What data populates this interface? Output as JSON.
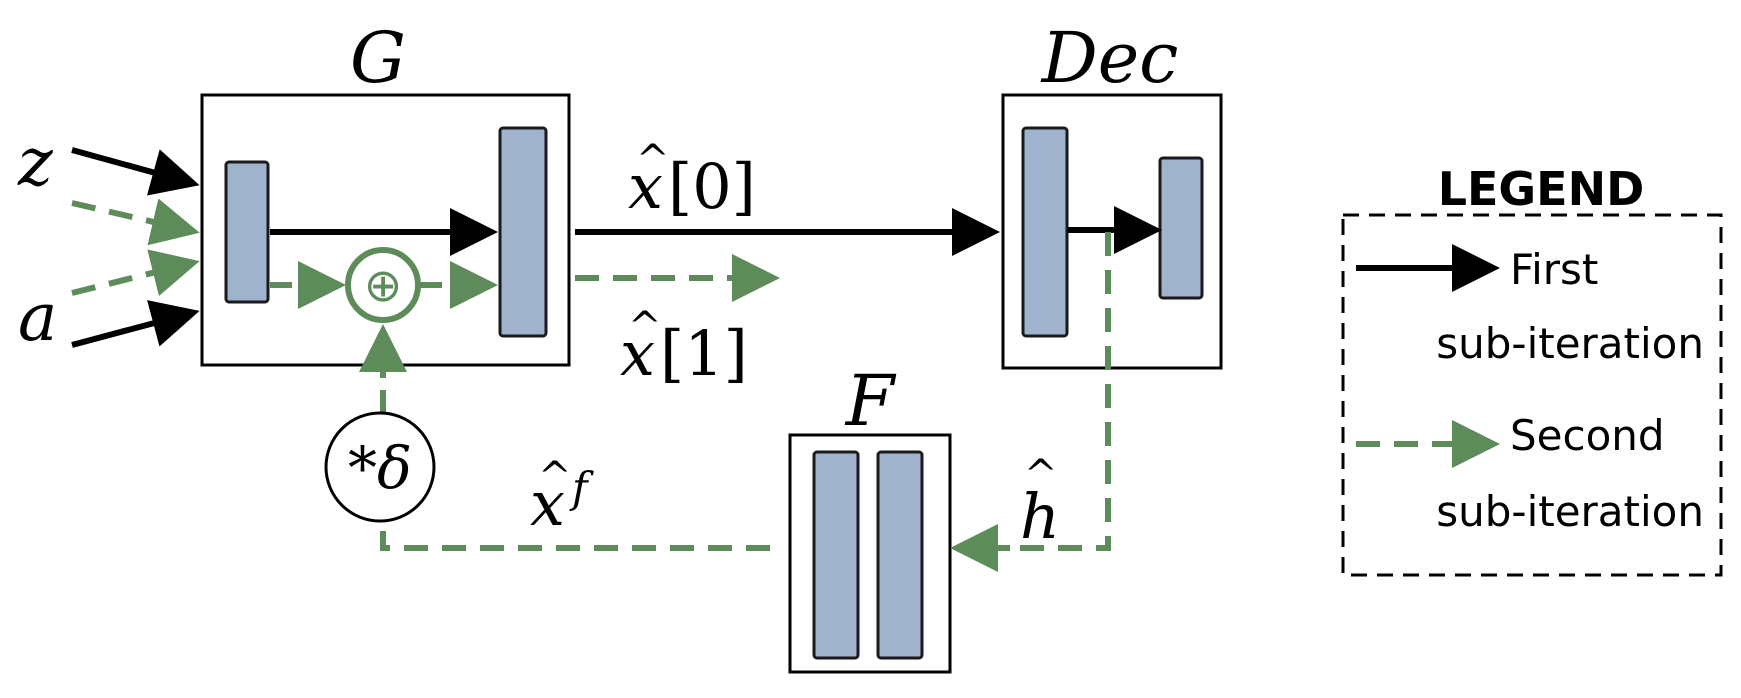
{
  "colors": {
    "block_fill": "#9fb3cd",
    "block_stroke": "#1a1a1a",
    "first_pass": "#000000",
    "second_pass": "#5d8c5a",
    "background": "#ffffff"
  },
  "modules": {
    "g": {
      "label": "G"
    },
    "dec": {
      "label": "Dec"
    },
    "f": {
      "label": "F"
    }
  },
  "inputs": {
    "z": "z",
    "a": "a"
  },
  "signals": {
    "x0_hat": "x",
    "x0_index": "[0]",
    "x1_hat": "x",
    "x1_index": "[1]",
    "xf_hat": "x",
    "xf_sup": "f",
    "h_hat": "h",
    "hat_mark": "^"
  },
  "operators": {
    "sum": "⊕",
    "scale": "*δ"
  },
  "legend": {
    "title": "LEGEND",
    "first_line1": "First",
    "first_line2": "sub-iteration",
    "second_line1": "Second",
    "second_line2": "sub-iteration"
  }
}
